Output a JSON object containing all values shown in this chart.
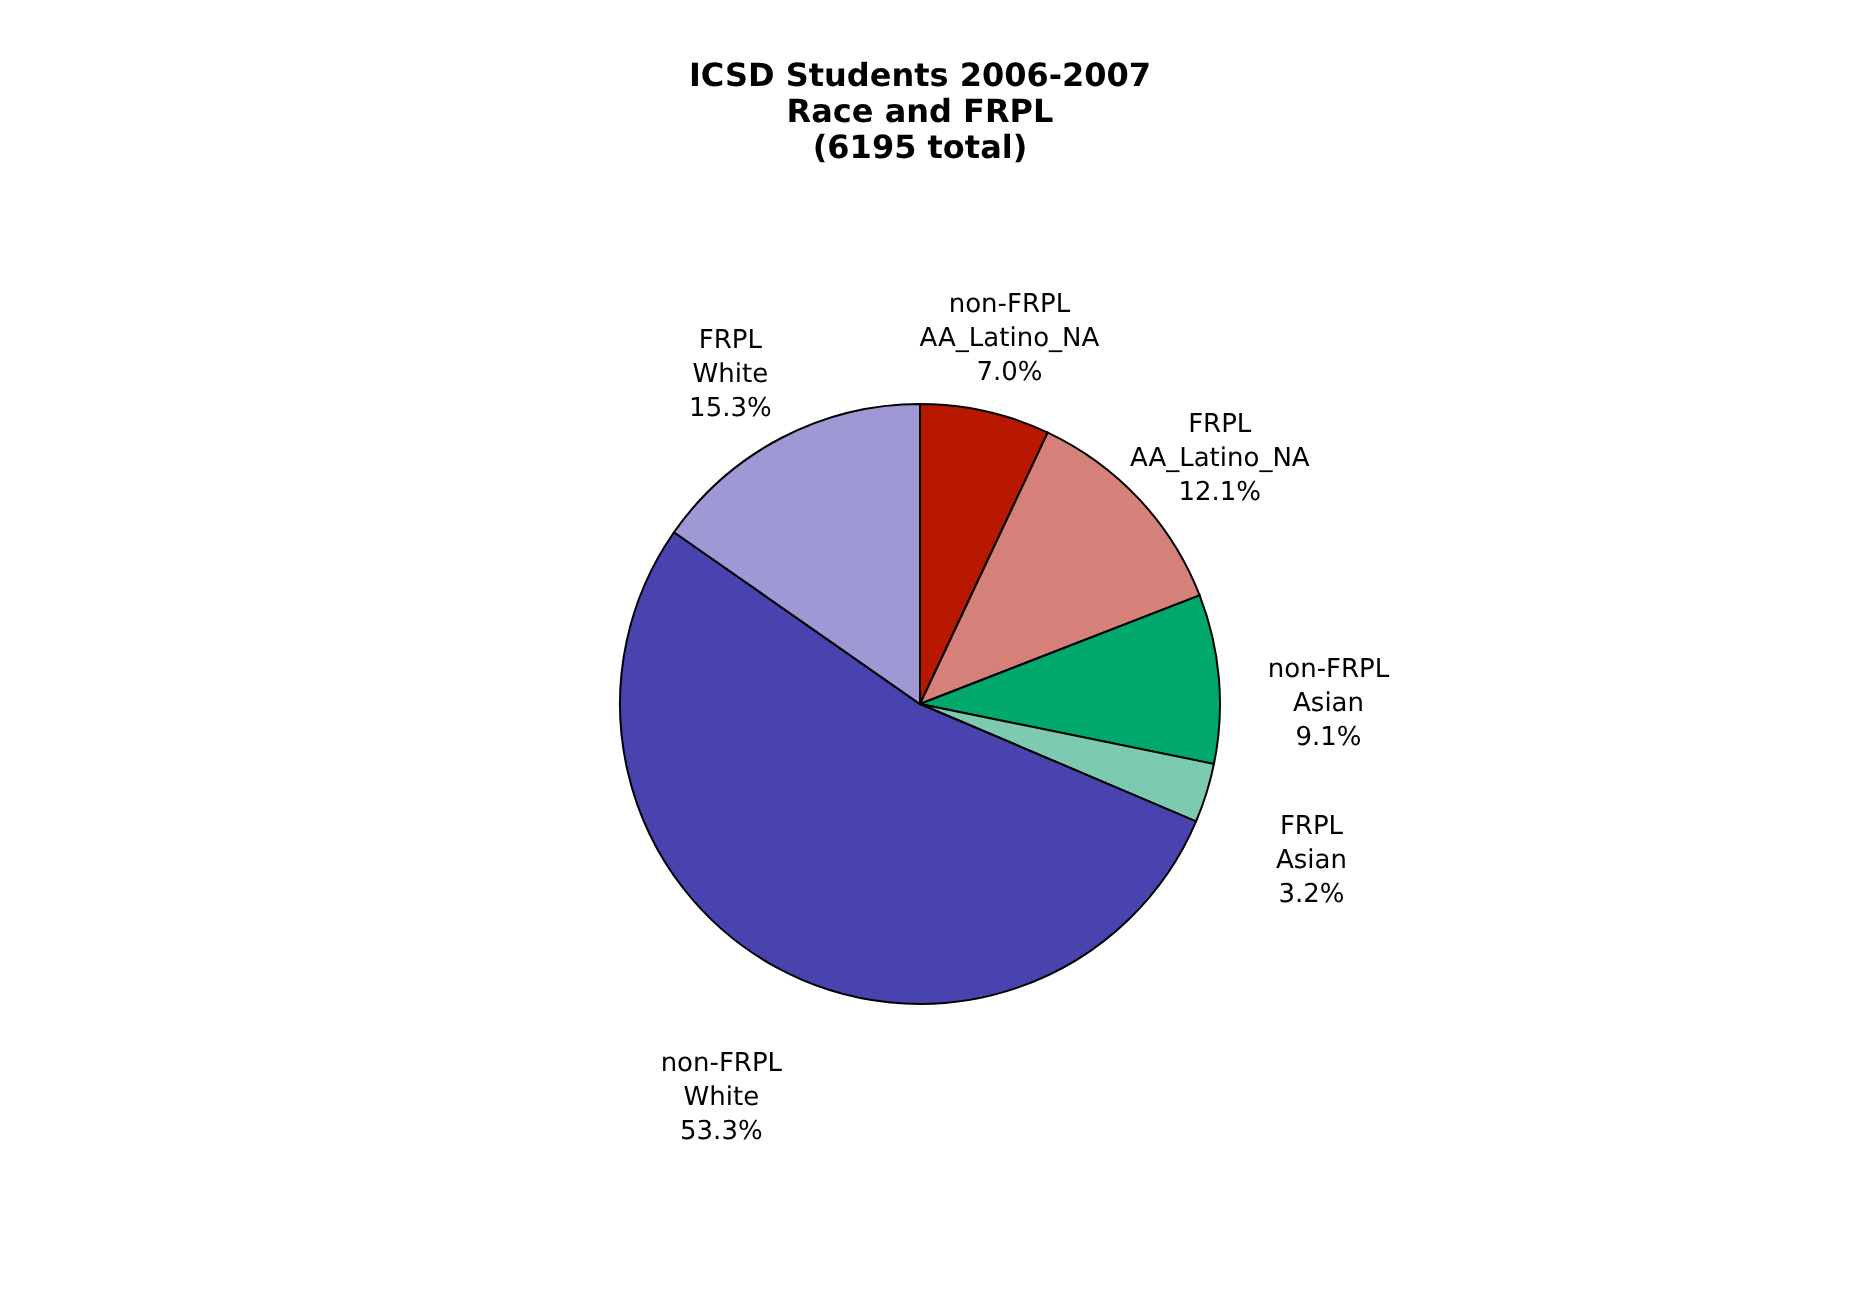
{
  "chart_data": {
    "type": "pie",
    "title": "ICSD Students 2006-2007\nRace and FRPL\n(6195  total)",
    "categories": [
      "non-FRPL AA_Latino_NA",
      "FRPL AA_Latino_NA",
      "non-FRPL Asian",
      "FRPL Asian",
      "non-FRPL White",
      "FRPL White"
    ],
    "values": [
      7.0,
      12.1,
      9.1,
      3.2,
      53.3,
      15.3
    ],
    "value_labels": [
      "7.0%",
      "12.1%",
      "9.1%",
      "3.2%",
      "53.3%",
      "15.3%"
    ],
    "colors": [
      "#b81800",
      "#d6807a",
      "#00a86b",
      "#7ccbb0",
      "#4943b0",
      "#9e98d4"
    ]
  }
}
